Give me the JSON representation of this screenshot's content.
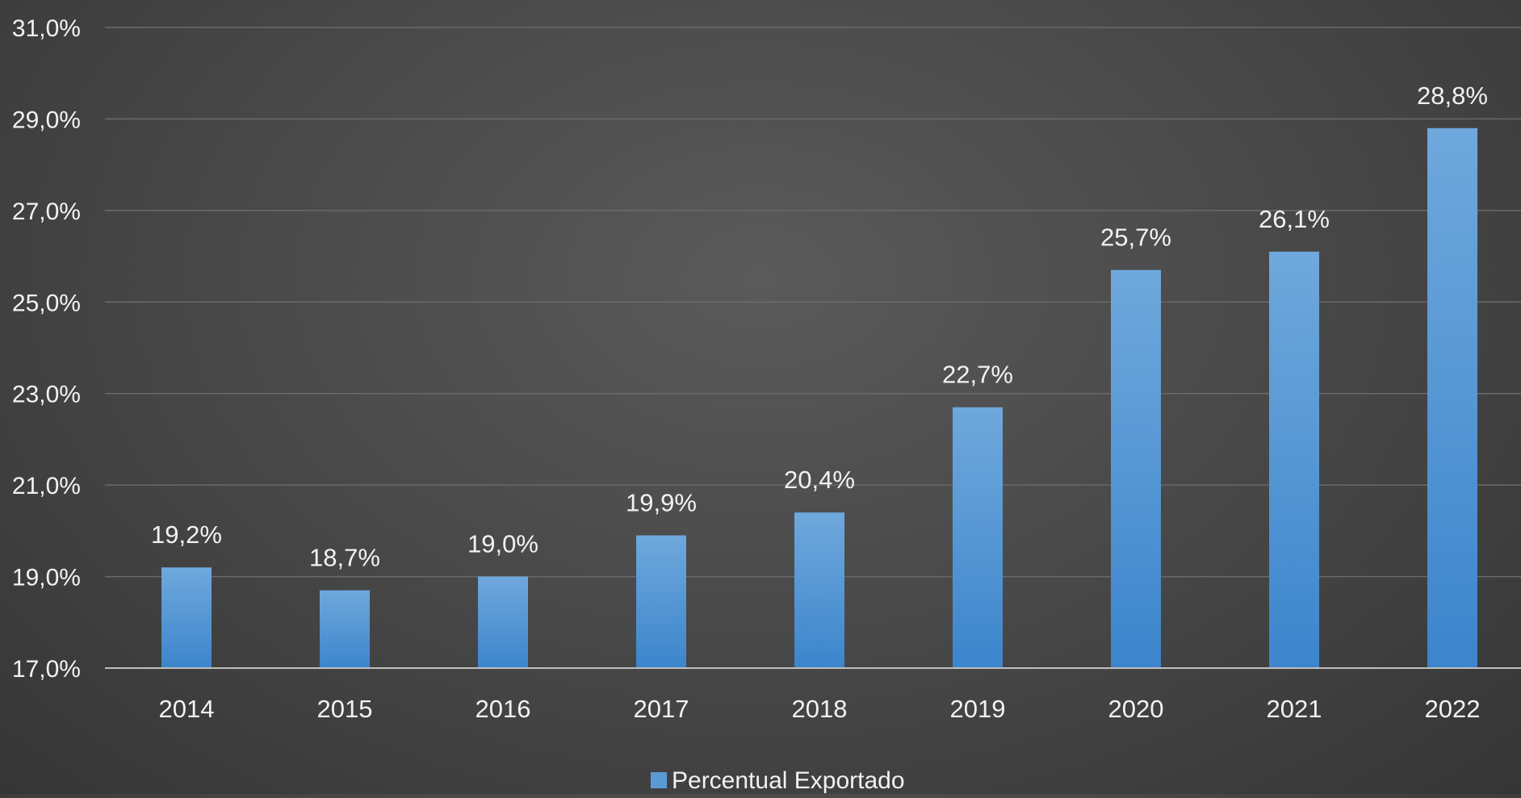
{
  "chart_data": {
    "type": "bar",
    "categories": [
      "2014",
      "2015",
      "2016",
      "2017",
      "2018",
      "2019",
      "2020",
      "2021",
      "2022"
    ],
    "series": [
      {
        "name": "Percentual Exportado",
        "values": [
          19.2,
          18.7,
          19.0,
          19.9,
          20.4,
          22.7,
          25.7,
          26.1,
          28.8
        ],
        "labels": [
          "19,2%",
          "18,7%",
          "19,0%",
          "19,9%",
          "20,4%",
          "22,7%",
          "25,7%",
          "26,1%",
          "28,8%"
        ],
        "color": "#5b9bd5"
      }
    ],
    "ylim": [
      17.0,
      31.0
    ],
    "yticks": [
      17.0,
      19.0,
      21.0,
      23.0,
      25.0,
      27.0,
      29.0,
      31.0
    ],
    "ytick_labels": [
      "17,0%",
      "19,0%",
      "21,0%",
      "23,0%",
      "25,0%",
      "27,0%",
      "29,0%",
      "31,0%"
    ],
    "grid": true,
    "legend_position": "bottom-center",
    "colors": {
      "background": "#444444",
      "gridline": "#6a6a6a",
      "axis": "#bfbfbf",
      "text": "#f2f2f2",
      "bar_top": "#6fa8dc",
      "bar_bottom": "#3c85cc"
    }
  }
}
